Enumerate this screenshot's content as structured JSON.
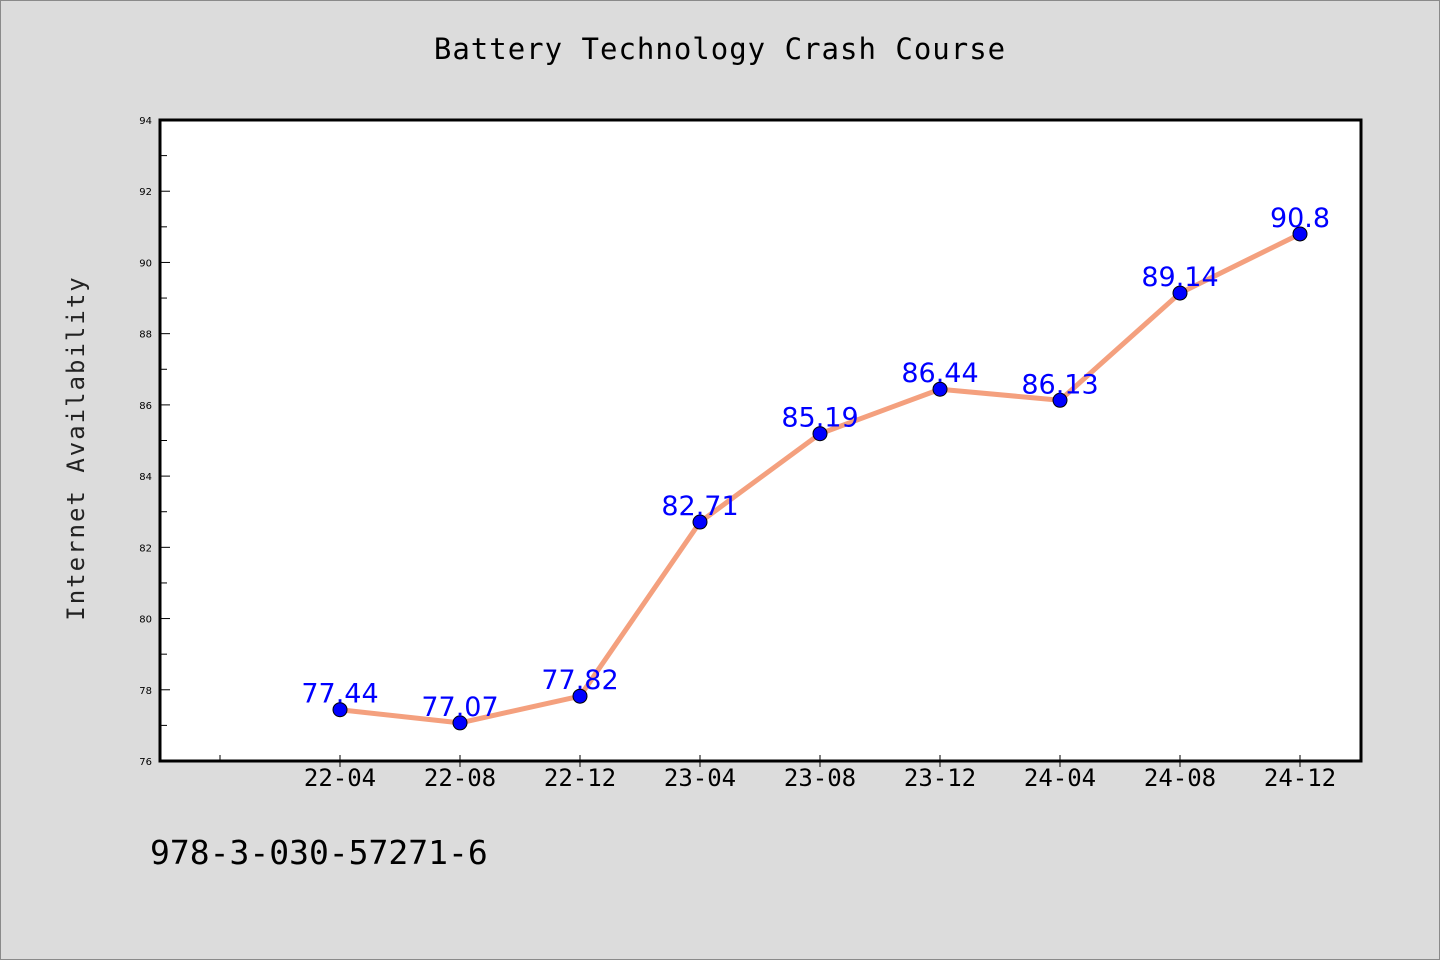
{
  "chart_data": {
    "type": "line",
    "title": "Battery Technology Crash Course",
    "xlabel": "",
    "ylabel": "Internet Availability",
    "categories": [
      "22-04",
      "22-08",
      "22-12",
      "23-04",
      "23-08",
      "23-12",
      "24-04",
      "24-08",
      "24-12"
    ],
    "series": [
      {
        "values": [
          77.44,
          77.07,
          77.82,
          82.71,
          85.19,
          86.44,
          86.13,
          89.14,
          90.8
        ],
        "labels": [
          "77.44",
          "77.07",
          "77.82",
          "82.71",
          "85.19",
          "86.44",
          "86.13",
          "89.14",
          "90.8"
        ]
      }
    ],
    "ylim": [
      76,
      94
    ],
    "yticks": [
      "76",
      "78",
      "80",
      "82",
      "84",
      "86",
      "88",
      "90",
      "92",
      "94"
    ],
    "grid": false,
    "legend": "none"
  },
  "footer": {
    "code": "978-3-030-57271-6"
  },
  "colors": {
    "background": "#dcdcdc",
    "plot_area": "#ffffff",
    "line": "#f4a07e",
    "marker": "#0000ff",
    "data_label": "#0000ff"
  }
}
